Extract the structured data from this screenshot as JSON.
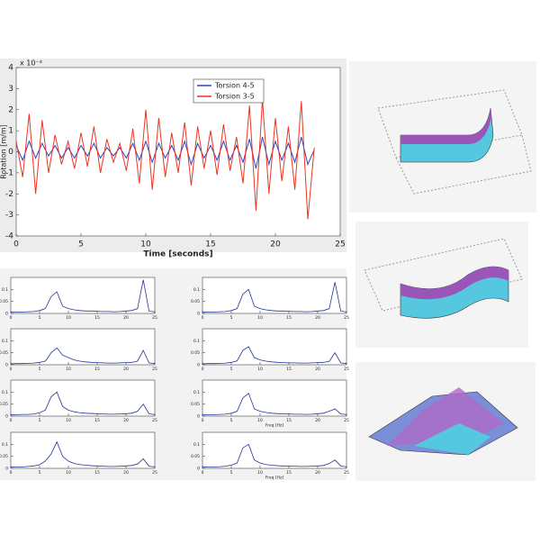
{
  "chart_data": [
    {
      "type": "line",
      "xlabel": "Time [seconds]",
      "ylabel": "Rotation [m/m]",
      "y_scale_label": "x 10⁻³",
      "xlim": [
        0,
        25
      ],
      "ylim": [
        -4,
        4
      ],
      "xticks": [
        0,
        5,
        10,
        15,
        20,
        25
      ],
      "yticks": [
        -4,
        -3,
        -2,
        -1,
        0,
        1,
        2,
        3,
        4
      ],
      "legend": "upper-center",
      "x": [
        0,
        0.5,
        1,
        1.5,
        2,
        2.5,
        3,
        3.5,
        4,
        4.5,
        5,
        5.5,
        6,
        6.5,
        7,
        7.5,
        8,
        8.5,
        9,
        9.5,
        10,
        10.5,
        11,
        11.5,
        12,
        12.5,
        13,
        13.5,
        14,
        14.5,
        15,
        15.5,
        16,
        16.5,
        17,
        17.5,
        18,
        18.5,
        19,
        19.5,
        20,
        20.5,
        21,
        21.5,
        22,
        22.5,
        23
      ],
      "series": [
        {
          "name": "Torsion 4-5",
          "color": "#3344bb",
          "values": [
            0.3,
            -0.4,
            0.5,
            -0.3,
            0.4,
            -0.2,
            0.3,
            -0.3,
            0.2,
            -0.3,
            0.3,
            -0.2,
            0.4,
            -0.3,
            0.2,
            -0.2,
            0.2,
            -0.3,
            0.4,
            -0.4,
            0.5,
            -0.5,
            0.4,
            -0.3,
            0.3,
            -0.4,
            0.5,
            -0.6,
            0.4,
            -0.3,
            0.3,
            -0.4,
            0.5,
            -0.4,
            0.3,
            -0.5,
            0.6,
            -0.8,
            0.7,
            -0.6,
            0.5,
            -0.4,
            0.4,
            -0.5,
            0.7,
            -0.6,
            0.1
          ]
        },
        {
          "name": "Torsion 3-5",
          "color": "#ee3322",
          "values": [
            0.5,
            -1.2,
            1.8,
            -2.0,
            1.5,
            -1.0,
            0.8,
            -0.6,
            0.5,
            -0.8,
            0.9,
            -0.7,
            1.2,
            -1.0,
            0.6,
            -0.5,
            0.4,
            -0.9,
            1.1,
            -1.5,
            2.0,
            -1.8,
            1.6,
            -1.2,
            0.9,
            -1.0,
            1.4,
            -1.6,
            1.2,
            -0.8,
            1.0,
            -1.1,
            1.3,
            -0.9,
            0.7,
            -1.5,
            2.2,
            -2.8,
            2.5,
            -2.0,
            1.6,
            -1.4,
            1.2,
            -1.8,
            2.4,
            -3.2,
            0.2
          ]
        }
      ]
    },
    {
      "type": "spectrum",
      "xlim": [
        0,
        25
      ],
      "ylim": [
        0,
        0.15
      ],
      "xticks": [
        0,
        5,
        10,
        15,
        20,
        25
      ],
      "yticks": [
        0,
        0.05,
        0.1
      ],
      "x": [
        0,
        1,
        2,
        3,
        4,
        5,
        6,
        7,
        8,
        9,
        10,
        11,
        12,
        13,
        14,
        15,
        16,
        17,
        18,
        19,
        20,
        21,
        22,
        23,
        24,
        25
      ],
      "series": [
        {
          "color": "#22339a",
          "values": [
            0.005,
            0.006,
            0.006,
            0.007,
            0.008,
            0.012,
            0.02,
            0.07,
            0.09,
            0.03,
            0.02,
            0.015,
            0.012,
            0.01,
            0.01,
            0.009,
            0.008,
            0.008,
            0.007,
            0.008,
            0.01,
            0.012,
            0.02,
            0.14,
            0.01,
            0.006
          ]
        }
      ]
    },
    {
      "type": "spectrum",
      "xlim": [
        0,
        25
      ],
      "ylim": [
        0,
        0.15
      ],
      "xticks": [
        0,
        5,
        10,
        15,
        20,
        25
      ],
      "yticks": [
        0,
        0.05,
        0.1
      ],
      "x": [
        0,
        1,
        2,
        3,
        4,
        5,
        6,
        7,
        8,
        9,
        10,
        11,
        12,
        13,
        14,
        15,
        16,
        17,
        18,
        19,
        20,
        21,
        22,
        23,
        24,
        25
      ],
      "series": [
        {
          "color": "#22339a",
          "values": [
            0.004,
            0.005,
            0.005,
            0.006,
            0.007,
            0.01,
            0.015,
            0.05,
            0.07,
            0.04,
            0.03,
            0.02,
            0.015,
            0.012,
            0.01,
            0.009,
            0.008,
            0.007,
            0.007,
            0.008,
            0.009,
            0.01,
            0.015,
            0.06,
            0.008,
            0.005
          ]
        }
      ]
    },
    {
      "type": "spectrum",
      "xlim": [
        0,
        25
      ],
      "ylim": [
        0,
        0.15
      ],
      "xticks": [
        0,
        5,
        10,
        15,
        20,
        25
      ],
      "yticks": [
        0,
        0.05,
        0.1
      ],
      "x": [
        0,
        1,
        2,
        3,
        4,
        5,
        6,
        7,
        8,
        9,
        10,
        11,
        12,
        13,
        14,
        15,
        16,
        17,
        18,
        19,
        20,
        21,
        22,
        23,
        24,
        25
      ],
      "series": [
        {
          "color": "#22339a",
          "values": [
            0.005,
            0.006,
            0.007,
            0.007,
            0.009,
            0.014,
            0.025,
            0.08,
            0.1,
            0.04,
            0.025,
            0.018,
            0.014,
            0.012,
            0.011,
            0.01,
            0.009,
            0.008,
            0.008,
            0.009,
            0.01,
            0.012,
            0.02,
            0.05,
            0.01,
            0.006
          ]
        }
      ]
    },
    {
      "type": "spectrum",
      "xlim": [
        0,
        25
      ],
      "ylim": [
        0,
        0.15
      ],
      "xticks": [
        0,
        5,
        10,
        15,
        20,
        25
      ],
      "yticks": [
        0,
        0.05,
        0.1
      ],
      "x": [
        0,
        1,
        2,
        3,
        4,
        5,
        6,
        7,
        8,
        9,
        10,
        11,
        12,
        13,
        14,
        15,
        16,
        17,
        18,
        19,
        20,
        21,
        22,
        23,
        24,
        25
      ],
      "series": [
        {
          "color": "#22339a",
          "values": [
            0.005,
            0.006,
            0.006,
            0.008,
            0.01,
            0.015,
            0.03,
            0.06,
            0.11,
            0.05,
            0.03,
            0.02,
            0.016,
            0.013,
            0.011,
            0.01,
            0.009,
            0.008,
            0.008,
            0.009,
            0.01,
            0.012,
            0.018,
            0.04,
            0.009,
            0.006
          ]
        }
      ]
    },
    {
      "type": "spectrum",
      "xlim": [
        0,
        25
      ],
      "ylim": [
        0,
        0.15
      ],
      "xticks": [
        0,
        5,
        10,
        15,
        20,
        25
      ],
      "yticks": [
        0,
        0.05,
        0.1
      ],
      "x": [
        0,
        1,
        2,
        3,
        4,
        5,
        6,
        7,
        8,
        9,
        10,
        11,
        12,
        13,
        14,
        15,
        16,
        17,
        18,
        19,
        20,
        21,
        22,
        23,
        24,
        25
      ],
      "series": [
        {
          "color": "#22339a",
          "values": [
            0.005,
            0.006,
            0.006,
            0.007,
            0.008,
            0.012,
            0.02,
            0.08,
            0.1,
            0.03,
            0.02,
            0.015,
            0.012,
            0.01,
            0.01,
            0.009,
            0.008,
            0.008,
            0.007,
            0.008,
            0.01,
            0.012,
            0.02,
            0.13,
            0.01,
            0.006
          ]
        }
      ]
    },
    {
      "type": "spectrum",
      "xlim": [
        0,
        25
      ],
      "ylim": [
        0,
        0.15
      ],
      "xticks": [
        0,
        5,
        10,
        15,
        20,
        25
      ],
      "yticks": [
        0,
        0.05,
        0.1
      ],
      "x": [
        0,
        1,
        2,
        3,
        4,
        5,
        6,
        7,
        8,
        9,
        10,
        11,
        12,
        13,
        14,
        15,
        16,
        17,
        18,
        19,
        20,
        21,
        22,
        23,
        24,
        25
      ],
      "series": [
        {
          "color": "#22339a",
          "values": [
            0.004,
            0.005,
            0.005,
            0.006,
            0.007,
            0.01,
            0.016,
            0.06,
            0.075,
            0.03,
            0.02,
            0.015,
            0.012,
            0.01,
            0.009,
            0.008,
            0.008,
            0.007,
            0.007,
            0.008,
            0.009,
            0.01,
            0.014,
            0.05,
            0.008,
            0.005
          ]
        }
      ]
    },
    {
      "type": "spectrum",
      "xlim": [
        0,
        25
      ],
      "ylim": [
        0,
        0.15
      ],
      "xticks": [
        0,
        5,
        10,
        15,
        20,
        25
      ],
      "yticks": [
        0,
        0.05,
        0.1
      ],
      "x": [
        0,
        1,
        2,
        3,
        4,
        5,
        6,
        7,
        8,
        9,
        10,
        11,
        12,
        13,
        14,
        15,
        16,
        17,
        18,
        19,
        20,
        21,
        22,
        23,
        24,
        25
      ],
      "series": [
        {
          "color": "#22339a",
          "values": [
            0.005,
            0.006,
            0.006,
            0.007,
            0.008,
            0.012,
            0.02,
            0.075,
            0.095,
            0.03,
            0.02,
            0.015,
            0.012,
            0.01,
            0.01,
            0.009,
            0.008,
            0.008,
            0.007,
            0.008,
            0.01,
            0.012,
            0.02,
            0.03,
            0.009,
            0.006
          ]
        }
      ],
      "xlabel": "Freq [Hz]"
    },
    {
      "type": "spectrum",
      "xlim": [
        0,
        25
      ],
      "ylim": [
        0,
        0.15
      ],
      "xticks": [
        0,
        5,
        10,
        15,
        20,
        25
      ],
      "yticks": [
        0,
        0.05,
        0.1
      ],
      "x": [
        0,
        1,
        2,
        3,
        4,
        5,
        6,
        7,
        8,
        9,
        10,
        11,
        12,
        13,
        14,
        15,
        16,
        17,
        18,
        19,
        20,
        21,
        22,
        23,
        24,
        25
      ],
      "series": [
        {
          "color": "#22339a",
          "values": [
            0.005,
            0.006,
            0.006,
            0.007,
            0.009,
            0.013,
            0.022,
            0.085,
            0.1,
            0.035,
            0.022,
            0.016,
            0.013,
            0.011,
            0.01,
            0.009,
            0.009,
            0.008,
            0.008,
            0.009,
            0.01,
            0.012,
            0.02,
            0.035,
            0.01,
            0.006
          ]
        }
      ],
      "xlabel": "Freq [Hz]"
    }
  ]
}
